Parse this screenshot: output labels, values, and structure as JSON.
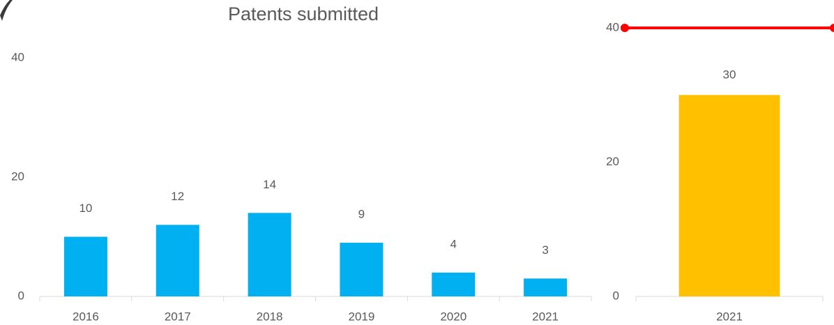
{
  "chart_data": [
    {
      "type": "bar",
      "title": "Patents submitted",
      "categories": [
        "2016",
        "2017",
        "2018",
        "2019",
        "2020",
        "2021"
      ],
      "values": [
        10,
        12,
        14,
        9,
        4,
        3
      ],
      "color": "#00b0f0",
      "ylim": [
        0,
        40
      ],
      "yticks": [
        0,
        20,
        40
      ],
      "grid": false
    },
    {
      "type": "bar",
      "categories": [
        "2021"
      ],
      "series": [
        {
          "color": "#ffc000",
          "values": [
            30
          ]
        },
        {
          "color": "#ff0000",
          "values": [
            40
          ],
          "style": "line"
        }
      ],
      "ylim": [
        0,
        40
      ],
      "yticks": [
        0,
        20,
        40
      ],
      "grid": false
    }
  ]
}
